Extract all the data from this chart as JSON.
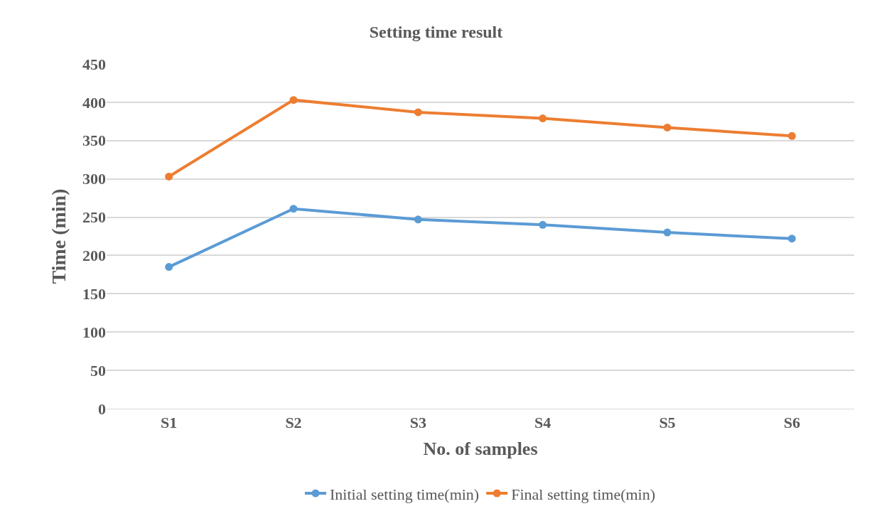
{
  "chart_data": {
    "type": "line",
    "title": "Setting time result",
    "xlabel": "No. of samples",
    "ylabel": "Time (min)",
    "categories": [
      "S1",
      "S2",
      "S3",
      "S4",
      "S5",
      "S6"
    ],
    "series": [
      {
        "name": "Initial setting time(min)",
        "color": "#5b9bd5",
        "values": [
          185,
          261,
          247,
          240,
          230,
          222
        ]
      },
      {
        "name": "Final setting time(min)",
        "color": "#ed7d31",
        "values": [
          303,
          403,
          387,
          379,
          367,
          356
        ]
      }
    ],
    "ylim": [
      0,
      450
    ],
    "yticks": [
      0,
      50,
      100,
      150,
      200,
      250,
      300,
      350,
      400,
      450
    ],
    "grid": "y",
    "legend": "bottom",
    "marker": "circle",
    "line_style": "solid"
  }
}
